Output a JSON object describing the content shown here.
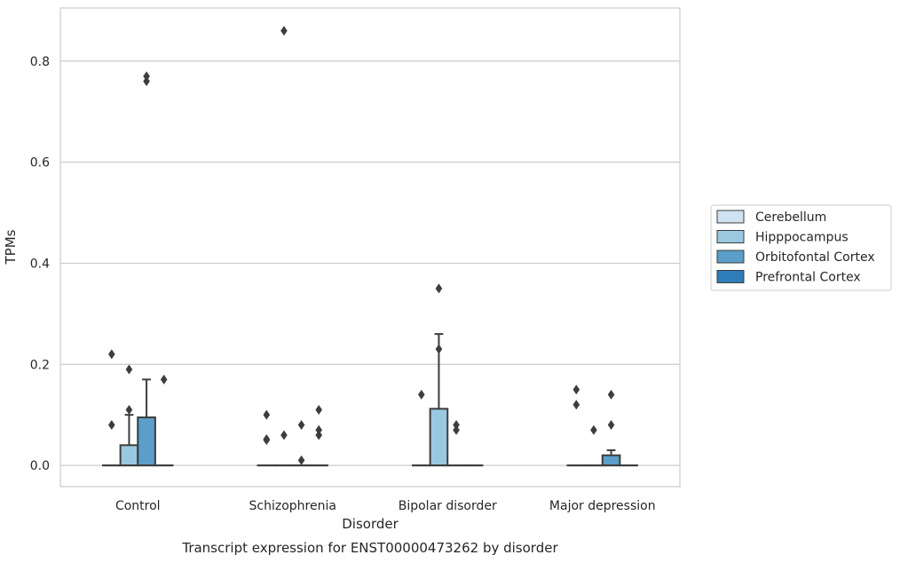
{
  "chart_data": {
    "type": "box",
    "caption": "Transcript expression for ENST00000473262 by disorder",
    "xlabel": "Disorder",
    "ylabel": "TPMs",
    "ylim": [
      -0.042,
      0.905
    ],
    "yticks": [
      "0.0",
      "0.2",
      "0.4",
      "0.6",
      "0.8"
    ],
    "ytick_values": [
      0.0,
      0.2,
      0.4,
      0.6,
      0.8
    ],
    "categories": [
      "Control",
      "Schizophrenia",
      "Bipolar disorder",
      "Major depression"
    ],
    "grid": "horizontal",
    "legend_position": "right",
    "series": [
      {
        "name": "Cerebellum",
        "color": "#d0e1f2",
        "boxes": [
          {
            "q1": 0,
            "median": 0,
            "q3": 0,
            "whisker_low": 0,
            "whisker_high": 0,
            "outliers": [
              0.08,
              0.22
            ]
          },
          {
            "q1": 0,
            "median": 0,
            "q3": 0,
            "whisker_low": 0,
            "whisker_high": 0,
            "outliers": [
              0.05,
              0.052,
              0.1
            ]
          },
          {
            "q1": 0,
            "median": 0,
            "q3": 0,
            "whisker_low": 0,
            "whisker_high": 0,
            "outliers": [
              0.14
            ]
          },
          {
            "q1": 0,
            "median": 0,
            "q3": 0,
            "whisker_low": 0,
            "whisker_high": 0,
            "outliers": [
              0.12,
              0.15
            ]
          }
        ]
      },
      {
        "name": "Hipppocampus",
        "color": "#9ac8e0",
        "boxes": [
          {
            "q1": 0,
            "median": 0,
            "q3": 0.04,
            "whisker_low": 0,
            "whisker_high": 0.1,
            "outliers": [
              0.11,
              0.19
            ]
          },
          {
            "q1": 0,
            "median": 0,
            "q3": 0,
            "whisker_low": 0,
            "whisker_high": 0,
            "outliers": [
              0.06,
              0.86
            ]
          },
          {
            "q1": 0,
            "median": 0,
            "q3": 0.112,
            "whisker_low": 0,
            "whisker_high": 0.26,
            "outliers": [
              0.23,
              0.35
            ]
          },
          {
            "q1": 0,
            "median": 0,
            "q3": 0,
            "whisker_low": 0,
            "whisker_high": 0,
            "outliers": [
              0.07
            ]
          }
        ]
      },
      {
        "name": "Orbitofontal Cortex",
        "color": "#5a9ec9",
        "boxes": [
          {
            "q1": 0,
            "median": 0,
            "q3": 0.095,
            "whisker_low": 0,
            "whisker_high": 0.17,
            "outliers": [
              0.76,
              0.77
            ]
          },
          {
            "q1": 0,
            "median": 0,
            "q3": 0,
            "whisker_low": 0,
            "whisker_high": 0,
            "outliers": [
              0.01,
              0.08
            ]
          },
          {
            "q1": 0,
            "median": 0,
            "q3": 0,
            "whisker_low": 0,
            "whisker_high": 0,
            "outliers": [
              0.07,
              0.08
            ]
          },
          {
            "q1": 0,
            "median": 0,
            "q3": 0.02,
            "whisker_low": 0,
            "whisker_high": 0.03,
            "outliers": [
              0.08,
              0.14
            ]
          }
        ]
      },
      {
        "name": "Prefrontal Cortex",
        "color": "#2d7dbb",
        "boxes": [
          {
            "q1": 0,
            "median": 0,
            "q3": 0,
            "whisker_low": 0,
            "whisker_high": 0,
            "outliers": [
              0.17
            ]
          },
          {
            "q1": 0,
            "median": 0,
            "q3": 0,
            "whisker_low": 0,
            "whisker_high": 0,
            "outliers": [
              0.06,
              0.07,
              0.11
            ]
          },
          {
            "q1": 0,
            "median": 0,
            "q3": 0,
            "whisker_low": 0,
            "whisker_high": 0,
            "outliers": []
          },
          {
            "q1": 0,
            "median": 0,
            "q3": 0,
            "whisker_low": 0,
            "whisker_high": 0,
            "outliers": []
          }
        ]
      }
    ]
  }
}
